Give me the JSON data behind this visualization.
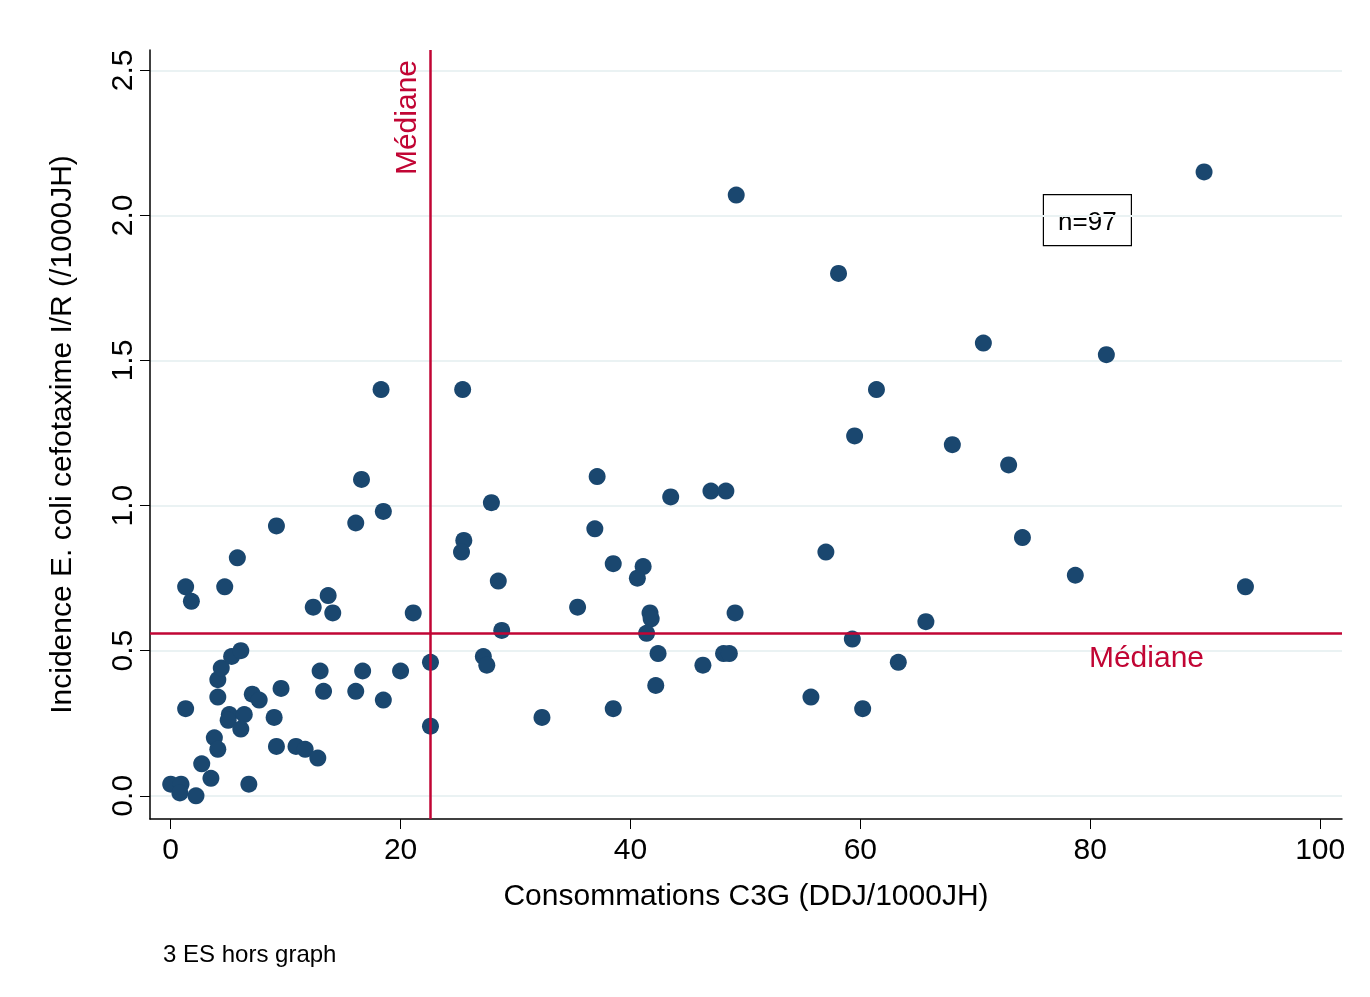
{
  "chart_data": {
    "type": "scatter",
    "xlabel": "Consommations C3G (DDJ/1000JH)",
    "ylabel": "Incidence E. coli cefotaxime I/R (/1000JH)",
    "x": [
      0,
      0.9,
      0.8,
      2.2,
      2.7,
      3.5,
      6.8,
      1.3,
      1.3,
      1.8,
      4.7,
      5.8,
      9.2,
      3.8,
      4.1,
      4.1,
      4.1,
      4.4,
      5.3,
      6.1,
      5.1,
      5.0,
      6.4,
      6.1,
      7.1,
      7.7,
      9.0,
      9.6,
      9.2,
      10.9,
      11.7,
      12.8,
      13.0,
      13.3,
      16.1,
      16.7,
      18.5,
      20.0,
      22.6,
      22.6,
      16.1,
      18.5,
      12.4,
      13.7,
      14.1,
      21.1,
      16.6,
      18.3,
      27.9,
      25.5,
      25.3,
      28.5,
      28.8,
      27.2,
      27.5,
      32.3,
      35.4,
      37.1,
      36.9,
      38.5,
      38.5,
      41.1,
      40.6,
      41.7,
      41.8,
      41.4,
      42.4,
      42.2,
      43.5,
      47.0,
      48.3,
      46.3,
      48.1,
      48.6,
      49.1,
      49.2,
      25.4,
      58.1,
      61.4,
      59.5,
      57.0,
      59.3,
      60.2,
      55.7,
      63.3,
      65.7,
      68.0,
      70.7,
      72.9,
      74.1,
      78.7,
      81.4,
      89.9,
      93.5
    ],
    "values": [
      0.04,
      0.04,
      0.01,
      0.0,
      0.11,
      0.06,
      0.04,
      0.3,
      0.72,
      0.67,
      0.72,
      0.82,
      0.93,
      0.2,
      0.16,
      0.34,
      0.4,
      0.44,
      0.48,
      0.5,
      0.28,
      0.26,
      0.28,
      0.23,
      0.35,
      0.33,
      0.27,
      0.37,
      0.17,
      0.17,
      0.16,
      0.13,
      0.43,
      0.36,
      0.36,
      0.43,
      0.33,
      0.43,
      0.46,
      0.24,
      0.94,
      0.98,
      0.65,
      0.69,
      0.63,
      0.63,
      1.09,
      1.4,
      1.01,
      0.88,
      0.84,
      0.74,
      0.57,
      0.48,
      0.45,
      0.27,
      0.65,
      1.1,
      0.92,
      0.8,
      0.3,
      0.79,
      0.75,
      0.63,
      0.61,
      0.56,
      0.49,
      0.38,
      1.03,
      1.05,
      1.05,
      0.45,
      0.49,
      0.49,
      0.63,
      2.07,
      1.4,
      1.8,
      1.4,
      1.24,
      0.84,
      0.54,
      0.3,
      0.34,
      0.46,
      0.6,
      1.21,
      1.56,
      1.14,
      0.89,
      0.76,
      1.52,
      2.15,
      0.72
    ],
    "color": "#1a476f",
    "marker": "circle",
    "xlim": [
      -1.8,
      101.9
    ],
    "ylim": [
      -0.08,
      2.57
    ],
    "xticks": [
      0,
      20,
      40,
      60,
      80,
      100
    ],
    "yticks": [
      {
        "value": 0,
        "label": "0.0"
      },
      0.5,
      {
        "value": 1,
        "label": "1.0"
      },
      1.5,
      {
        "value": 2,
        "label": "2.0"
      },
      2.5
    ],
    "grid": "y",
    "ref_lines": [
      {
        "axis": "x",
        "value": 22.6,
        "label": "Médiane",
        "color": "#c10534"
      },
      {
        "axis": "y",
        "value": 0.56,
        "label": "Médiane",
        "color": "#c10534"
      }
    ],
    "annotations": [
      "n=97",
      "3 ES hors graph"
    ]
  }
}
